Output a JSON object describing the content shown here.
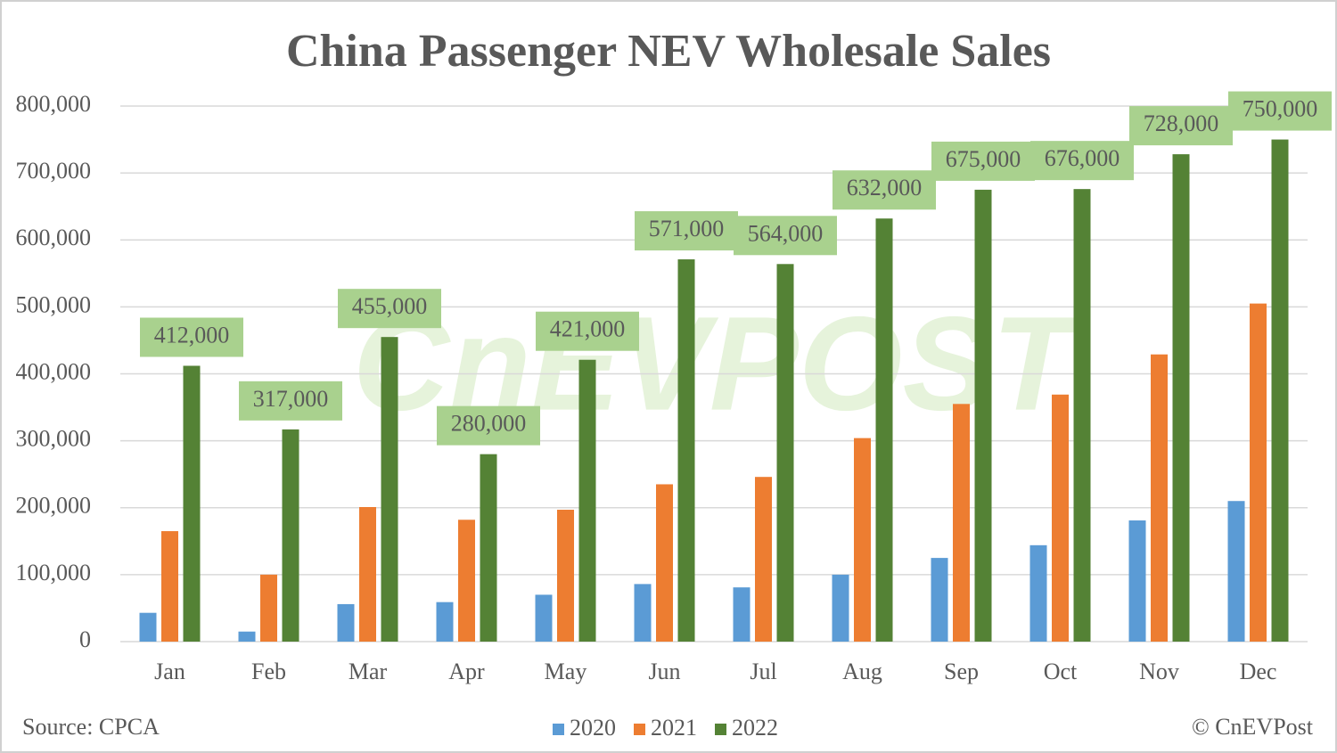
{
  "chart_data": {
    "type": "bar",
    "title": "China Passenger NEV Wholesale Sales",
    "source": "Source: CPCA",
    "credit": "© CnEVPost",
    "watermark": "CnEVPOST",
    "categories": [
      "Jan",
      "Feb",
      "Mar",
      "Apr",
      "May",
      "Jun",
      "Jul",
      "Aug",
      "Sep",
      "Oct",
      "Nov",
      "Dec"
    ],
    "series": [
      {
        "name": "2020",
        "color": "#5b9bd5",
        "values": [
          43000,
          15000,
          56000,
          59000,
          70000,
          86000,
          81000,
          100000,
          125000,
          144000,
          181000,
          210000
        ]
      },
      {
        "name": "2021",
        "color": "#ed7d31",
        "values": [
          165000,
          100000,
          201000,
          182000,
          197000,
          235000,
          246000,
          304000,
          355000,
          369000,
          429000,
          505000
        ]
      },
      {
        "name": "2022",
        "color": "#548235",
        "values": [
          412000,
          317000,
          455000,
          280000,
          421000,
          571000,
          564000,
          632000,
          675000,
          676000,
          728000,
          750000
        ],
        "value_labels": [
          "412,000",
          "317,000",
          "455,000",
          "280,000",
          "421,000",
          "571,000",
          "564,000",
          "632,000",
          "675,000",
          "676,000",
          "728,000",
          "750,000"
        ]
      }
    ],
    "ylim": [
      0,
      800000
    ],
    "yticks": [
      0,
      {
        "value": 100000,
        "label": "100,000"
      },
      {
        "value": 200000,
        "label": "200,000"
      },
      {
        "value": 300000,
        "label": "300,000"
      },
      {
        "value": 400000,
        "label": "400,000"
      },
      {
        "value": 500000,
        "label": "500,000"
      },
      {
        "value": 600000,
        "label": "600,000"
      },
      {
        "value": 700000,
        "label": "700,000"
      },
      {
        "value": 800000,
        "label": "800,000"
      }
    ],
    "grid": true,
    "legend": "bottom"
  }
}
